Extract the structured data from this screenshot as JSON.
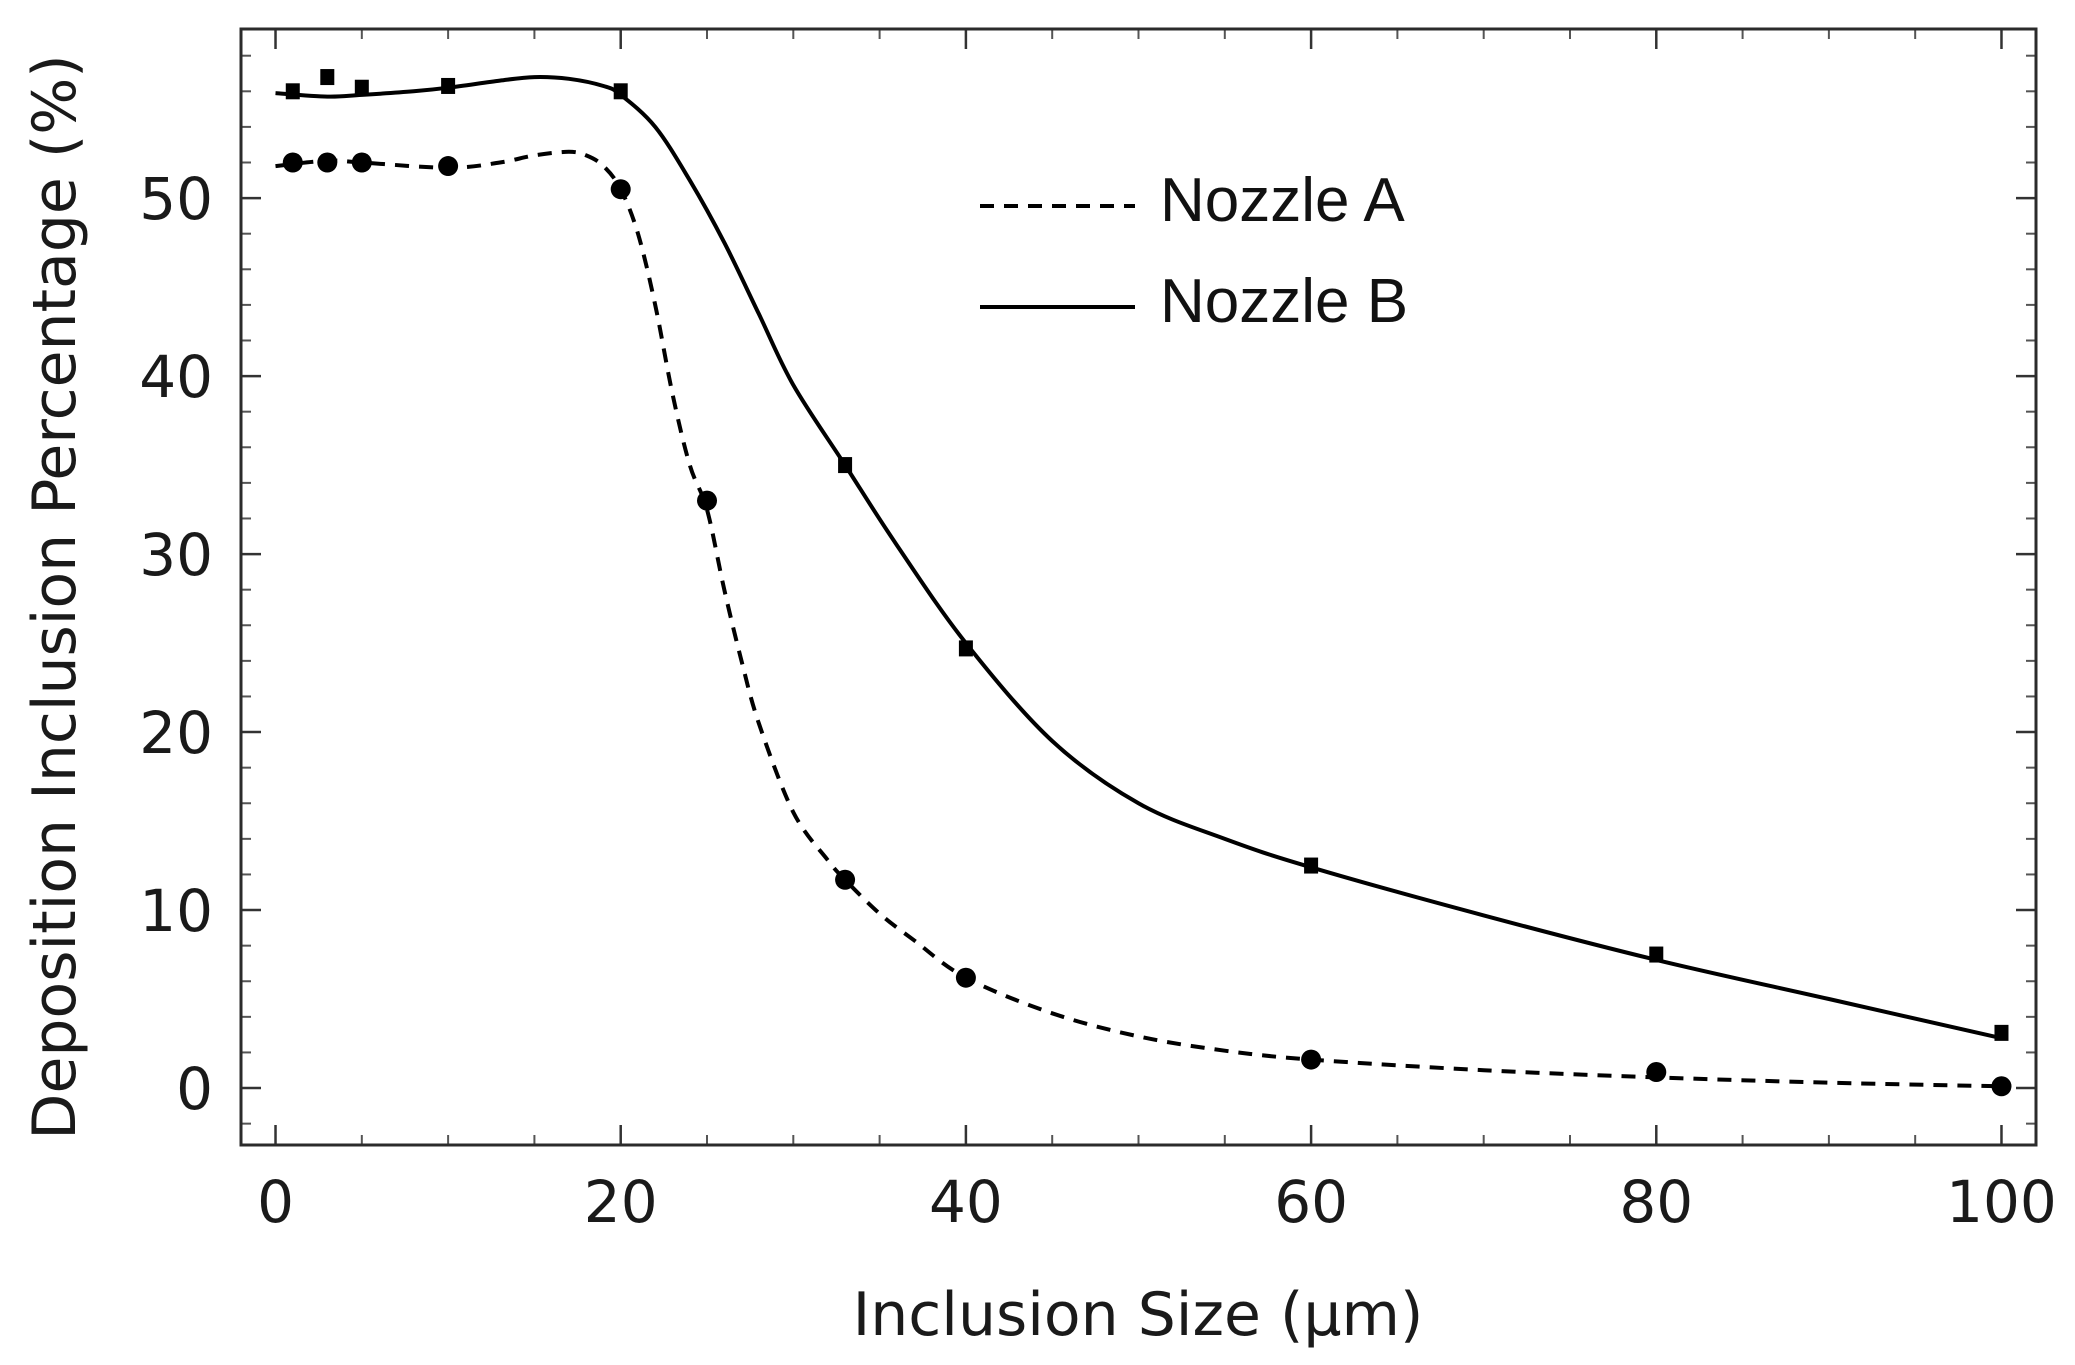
{
  "chart_data": {
    "type": "scatter",
    "title": "",
    "xlabel": "Inclusion Size (μm)",
    "ylabel": "Deposition Inclusion Percentage (%)",
    "xlim": [
      -2,
      102
    ],
    "ylim": [
      -3.2,
      59.5
    ],
    "xticks": [
      0,
      20,
      40,
      60,
      80,
      100
    ],
    "yticks": [
      0,
      10,
      20,
      30,
      40,
      50
    ],
    "xtick_labels": [
      "0",
      "20",
      "40",
      "60",
      "80",
      "100"
    ],
    "ytick_labels": [
      "0",
      "10",
      "20",
      "30",
      "40",
      "50"
    ],
    "x_minor_step": 5,
    "y_minor_step": 2,
    "legend_position": "top-center",
    "series": [
      {
        "name": "Nozzle A",
        "line_style": "dashed",
        "marker": "circle",
        "color": "#000000",
        "x": [
          1,
          3,
          5,
          10,
          20,
          25,
          33,
          40,
          60,
          80,
          100
        ],
        "y": [
          52.0,
          52.0,
          52.0,
          51.8,
          50.5,
          33.0,
          11.7,
          6.2,
          1.6,
          0.9,
          0.1
        ],
        "fit_x": [
          0,
          3,
          5,
          10,
          13,
          15,
          17,
          18,
          19,
          20,
          21,
          22,
          23,
          24,
          25,
          26,
          27,
          28,
          30,
          32,
          33,
          35,
          37,
          40,
          45,
          50,
          55,
          60,
          70,
          80,
          90,
          100
        ],
        "fit_y": [
          51.8,
          52.1,
          52.0,
          51.7,
          52.0,
          52.4,
          52.6,
          52.4,
          51.8,
          50.5,
          48.0,
          44.0,
          39.0,
          35.0,
          32.5,
          28.0,
          24.0,
          20.5,
          15.5,
          12.8,
          11.7,
          9.8,
          8.3,
          6.2,
          4.2,
          2.9,
          2.1,
          1.6,
          1.0,
          0.6,
          0.3,
          0.1
        ]
      },
      {
        "name": "Nozzle B",
        "line_style": "solid",
        "marker": "square",
        "color": "#000000",
        "x": [
          1,
          3,
          5,
          10,
          20,
          33,
          40,
          60,
          80,
          100
        ],
        "y": [
          56.0,
          56.8,
          56.2,
          56.3,
          56.0,
          35.0,
          24.7,
          12.5,
          7.5,
          3.1
        ],
        "fit_x": [
          0,
          3,
          5,
          8,
          10,
          13,
          15,
          17,
          19,
          20,
          22,
          24,
          26,
          28,
          30,
          33,
          36,
          40,
          45,
          50,
          55,
          60,
          70,
          80,
          90,
          100
        ],
        "fit_y": [
          55.9,
          55.7,
          55.8,
          56.0,
          56.2,
          56.6,
          56.8,
          56.7,
          56.3,
          55.8,
          54.0,
          51.0,
          47.5,
          43.5,
          39.5,
          35.0,
          30.5,
          25.0,
          19.5,
          16.0,
          14.0,
          12.4,
          9.7,
          7.2,
          5.0,
          2.8
        ]
      }
    ]
  }
}
